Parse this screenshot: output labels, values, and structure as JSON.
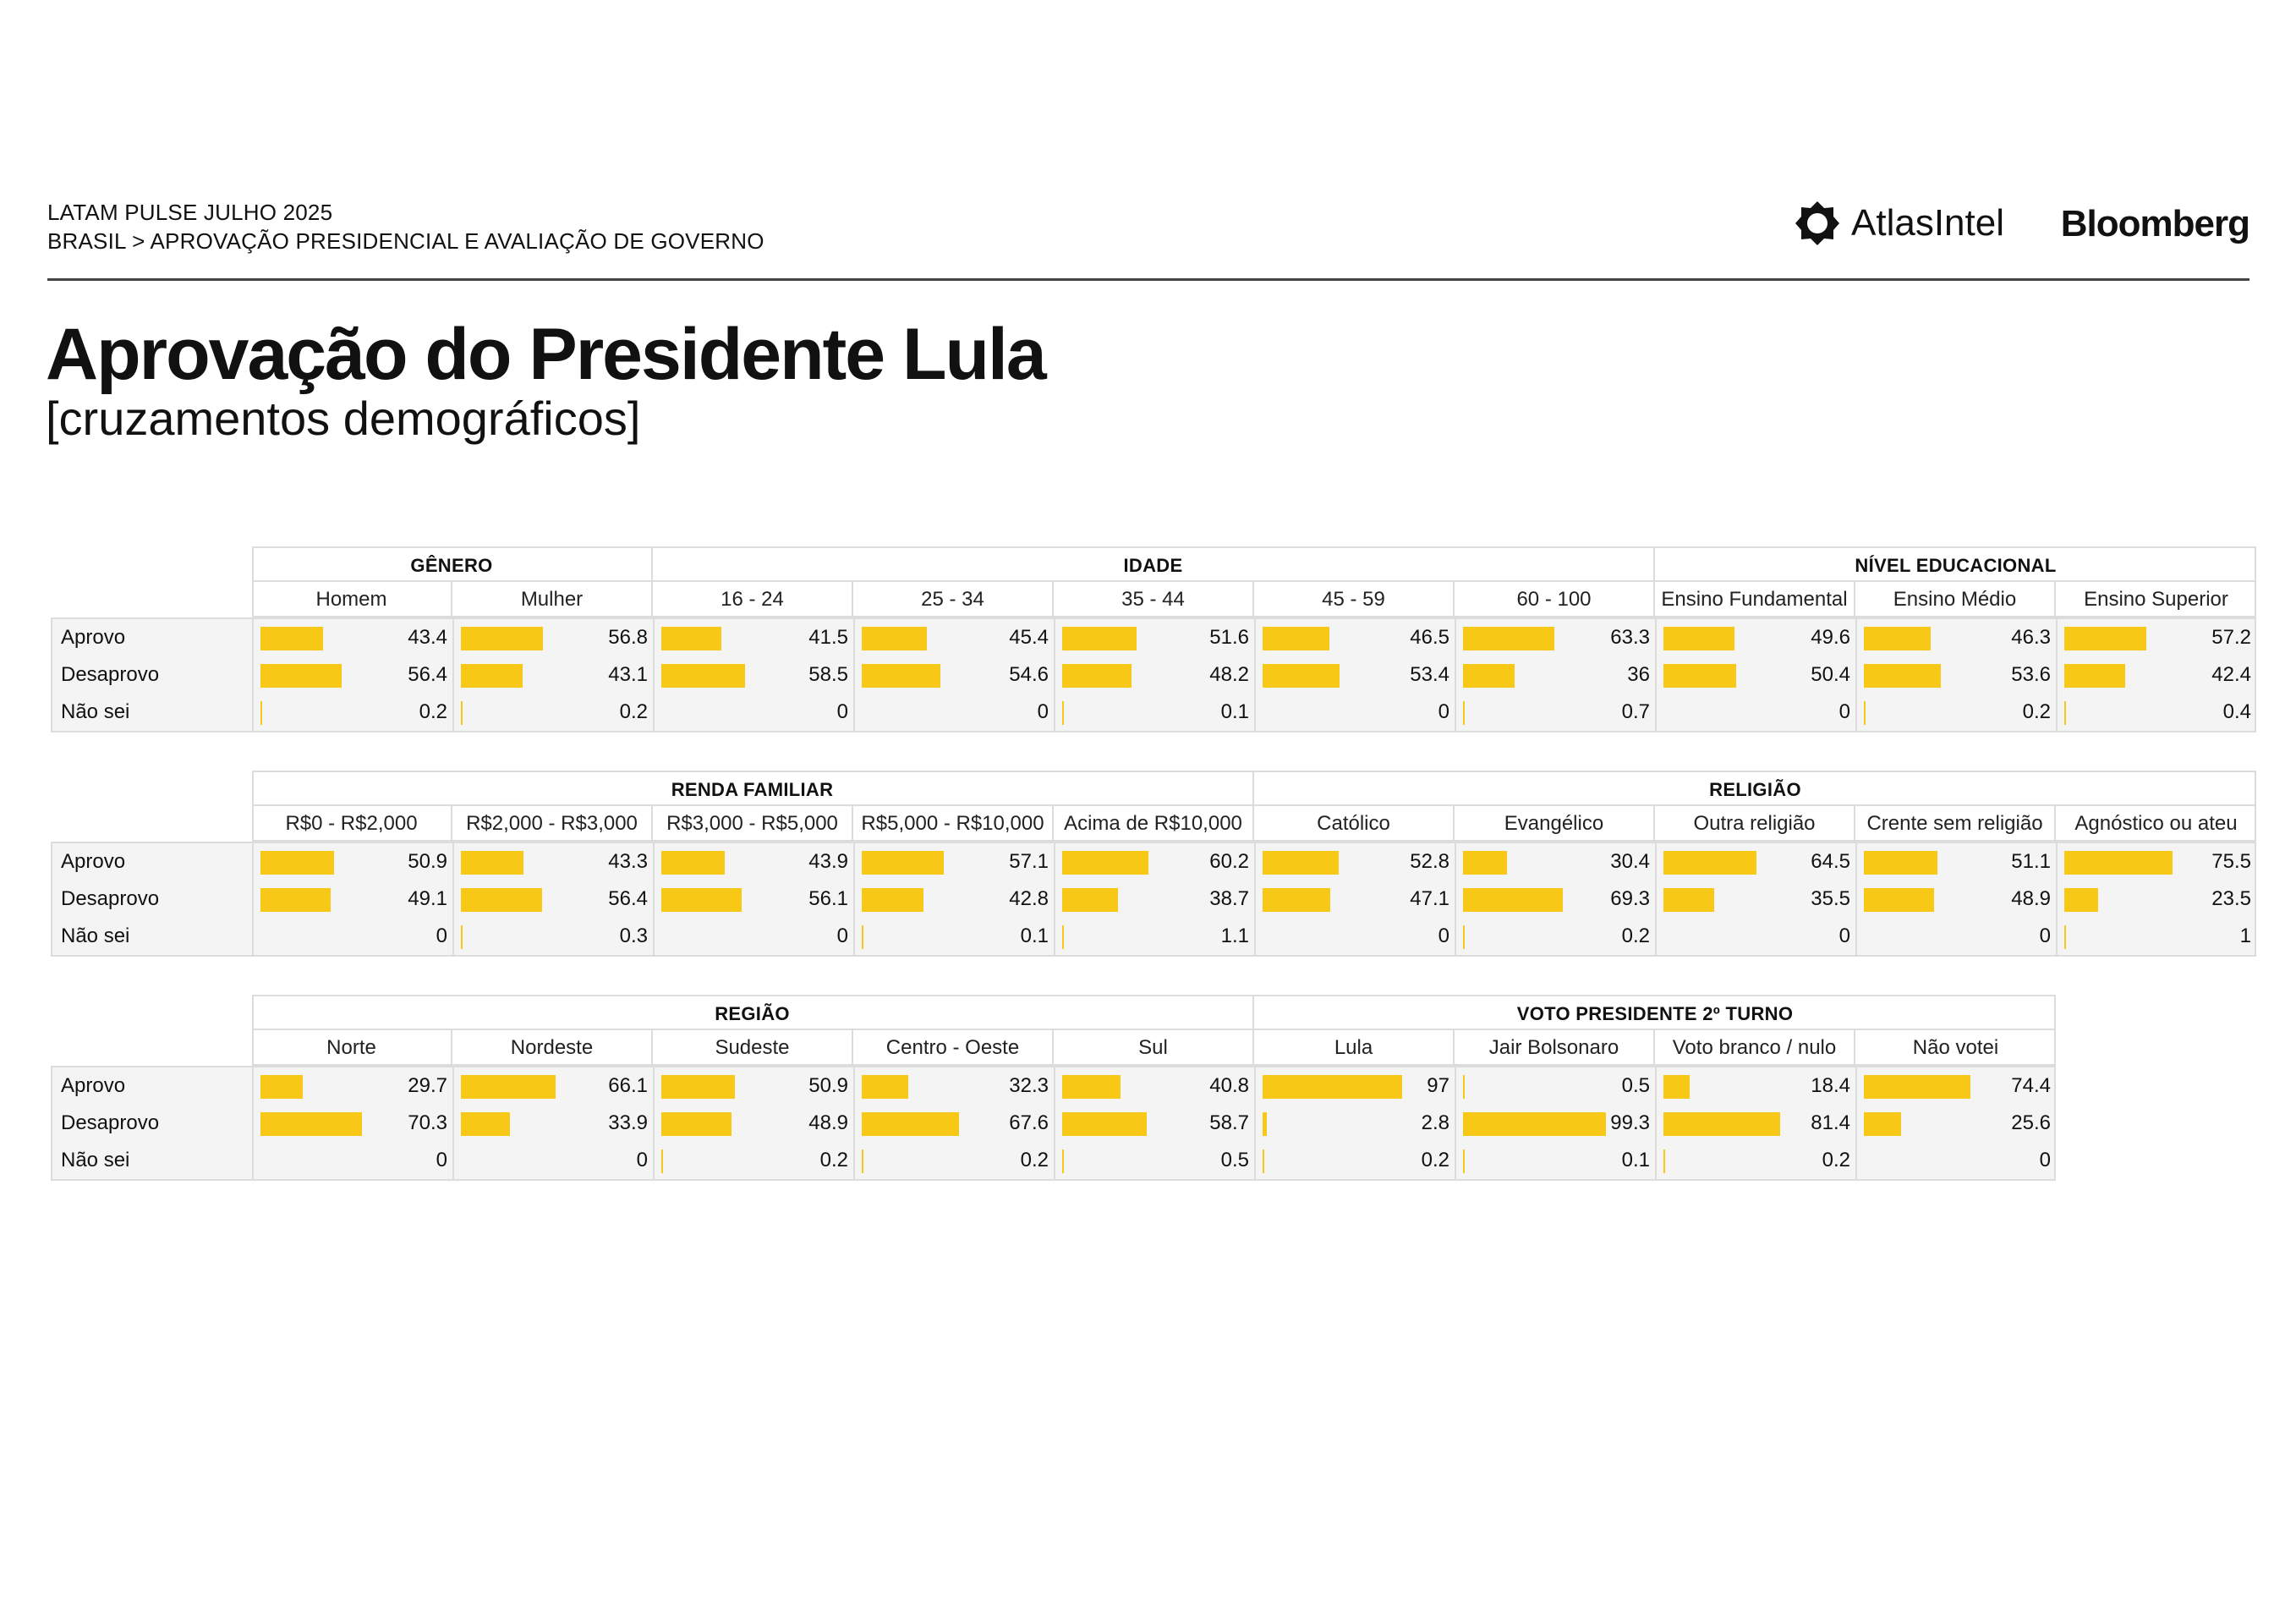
{
  "header": {
    "line1": "LATAM PULSE JULHO 2025",
    "line2": "BRASIL > APROVAÇÃO PRESIDENCIAL E AVALIAÇÃO DE GOVERNO",
    "brand_atlas": "AtlasIntel",
    "brand_bloomberg": "Bloomberg"
  },
  "title": "Aprovação do Presidente Lula",
  "subtitle": "[cruzamentos demográficos]",
  "colors": {
    "bar": "#f7c815",
    "grid": "#dcdcdc",
    "row_bg": "#f4f4f4",
    "text": "#111111"
  },
  "chart_data": [
    {
      "type": "table",
      "row_labels": [
        "Aprovo",
        "Desaprovo",
        "Não sei"
      ],
      "groups": [
        {
          "name": "GÊNERO",
          "categories": [
            {
              "label": "Homem",
              "values": [
                "43.4",
                "56.4",
                "0.2"
              ]
            },
            {
              "label": "Mulher",
              "values": [
                "56.8",
                "43.1",
                "0.2"
              ]
            }
          ]
        },
        {
          "name": "IDADE",
          "categories": [
            {
              "label": "16 - 24",
              "values": [
                "41.5",
                "58.5",
                "0"
              ]
            },
            {
              "label": "25 - 34",
              "values": [
                "45.4",
                "54.6",
                "0"
              ]
            },
            {
              "label": "35 - 44",
              "values": [
                "51.6",
                "48.2",
                "0.1"
              ]
            },
            {
              "label": "45 - 59",
              "values": [
                "46.5",
                "53.4",
                "0"
              ]
            },
            {
              "label": "60 - 100",
              "values": [
                "63.3",
                "36",
                "0.7"
              ]
            }
          ]
        },
        {
          "name": "NÍVEL EDUCACIONAL",
          "categories": [
            {
              "label": "Ensino Fundamental",
              "values": [
                "49.6",
                "50.4",
                "0"
              ]
            },
            {
              "label": "Ensino Médio",
              "values": [
                "46.3",
                "53.6",
                "0.2"
              ]
            },
            {
              "label": "Ensino Superior",
              "values": [
                "57.2",
                "42.4",
                "0.4"
              ]
            }
          ]
        }
      ]
    },
    {
      "type": "table",
      "row_labels": [
        "Aprovo",
        "Desaprovo",
        "Não sei"
      ],
      "groups": [
        {
          "name": "RENDA FAMILIAR",
          "categories": [
            {
              "label": "R$0 - R$2,000",
              "values": [
                "50.9",
                "49.1",
                "0"
              ]
            },
            {
              "label": "R$2,000 - R$3,000",
              "values": [
                "43.3",
                "56.4",
                "0.3"
              ]
            },
            {
              "label": "R$3,000 - R$5,000",
              "values": [
                "43.9",
                "56.1",
                "0"
              ]
            },
            {
              "label": "R$5,000 - R$10,000",
              "values": [
                "57.1",
                "42.8",
                "0.1"
              ]
            },
            {
              "label": "Acima de R$10,000",
              "values": [
                "60.2",
                "38.7",
                "1.1"
              ]
            }
          ]
        },
        {
          "name": "RELIGIÃO",
          "categories": [
            {
              "label": "Católico",
              "values": [
                "52.8",
                "47.1",
                "0"
              ]
            },
            {
              "label": "Evangélico",
              "values": [
                "30.4",
                "69.3",
                "0.2"
              ]
            },
            {
              "label": "Outra religião",
              "values": [
                "64.5",
                "35.5",
                "0"
              ]
            },
            {
              "label": "Crente sem religião",
              "values": [
                "51.1",
                "48.9",
                "0"
              ]
            },
            {
              "label": "Agnóstico ou ateu",
              "values": [
                "75.5",
                "23.5",
                "1"
              ]
            }
          ]
        }
      ]
    },
    {
      "type": "table",
      "row_labels": [
        "Aprovo",
        "Desaprovo",
        "Não sei"
      ],
      "groups": [
        {
          "name": "REGIÃO",
          "categories": [
            {
              "label": "Norte",
              "values": [
                "29.7",
                "70.3",
                "0"
              ]
            },
            {
              "label": "Nordeste",
              "values": [
                "66.1",
                "33.9",
                "0"
              ]
            },
            {
              "label": "Sudeste",
              "values": [
                "50.9",
                "48.9",
                "0.2"
              ]
            },
            {
              "label": "Centro - Oeste",
              "values": [
                "32.3",
                "67.6",
                "0.2"
              ]
            },
            {
              "label": "Sul",
              "values": [
                "40.8",
                "58.7",
                "0.5"
              ]
            }
          ]
        },
        {
          "name": "VOTO PRESIDENTE 2º TURNO",
          "categories": [
            {
              "label": "Lula",
              "values": [
                "97",
                "2.8",
                "0.2"
              ]
            },
            {
              "label": "Jair Bolsonaro",
              "values": [
                "0.5",
                "99.3",
                "0.1"
              ]
            },
            {
              "label": "Voto branco / nulo",
              "values": [
                "18.4",
                "81.4",
                "0.2"
              ]
            },
            {
              "label": "Não votei",
              "values": [
                "74.4",
                "25.6",
                "0"
              ]
            }
          ]
        }
      ]
    }
  ]
}
